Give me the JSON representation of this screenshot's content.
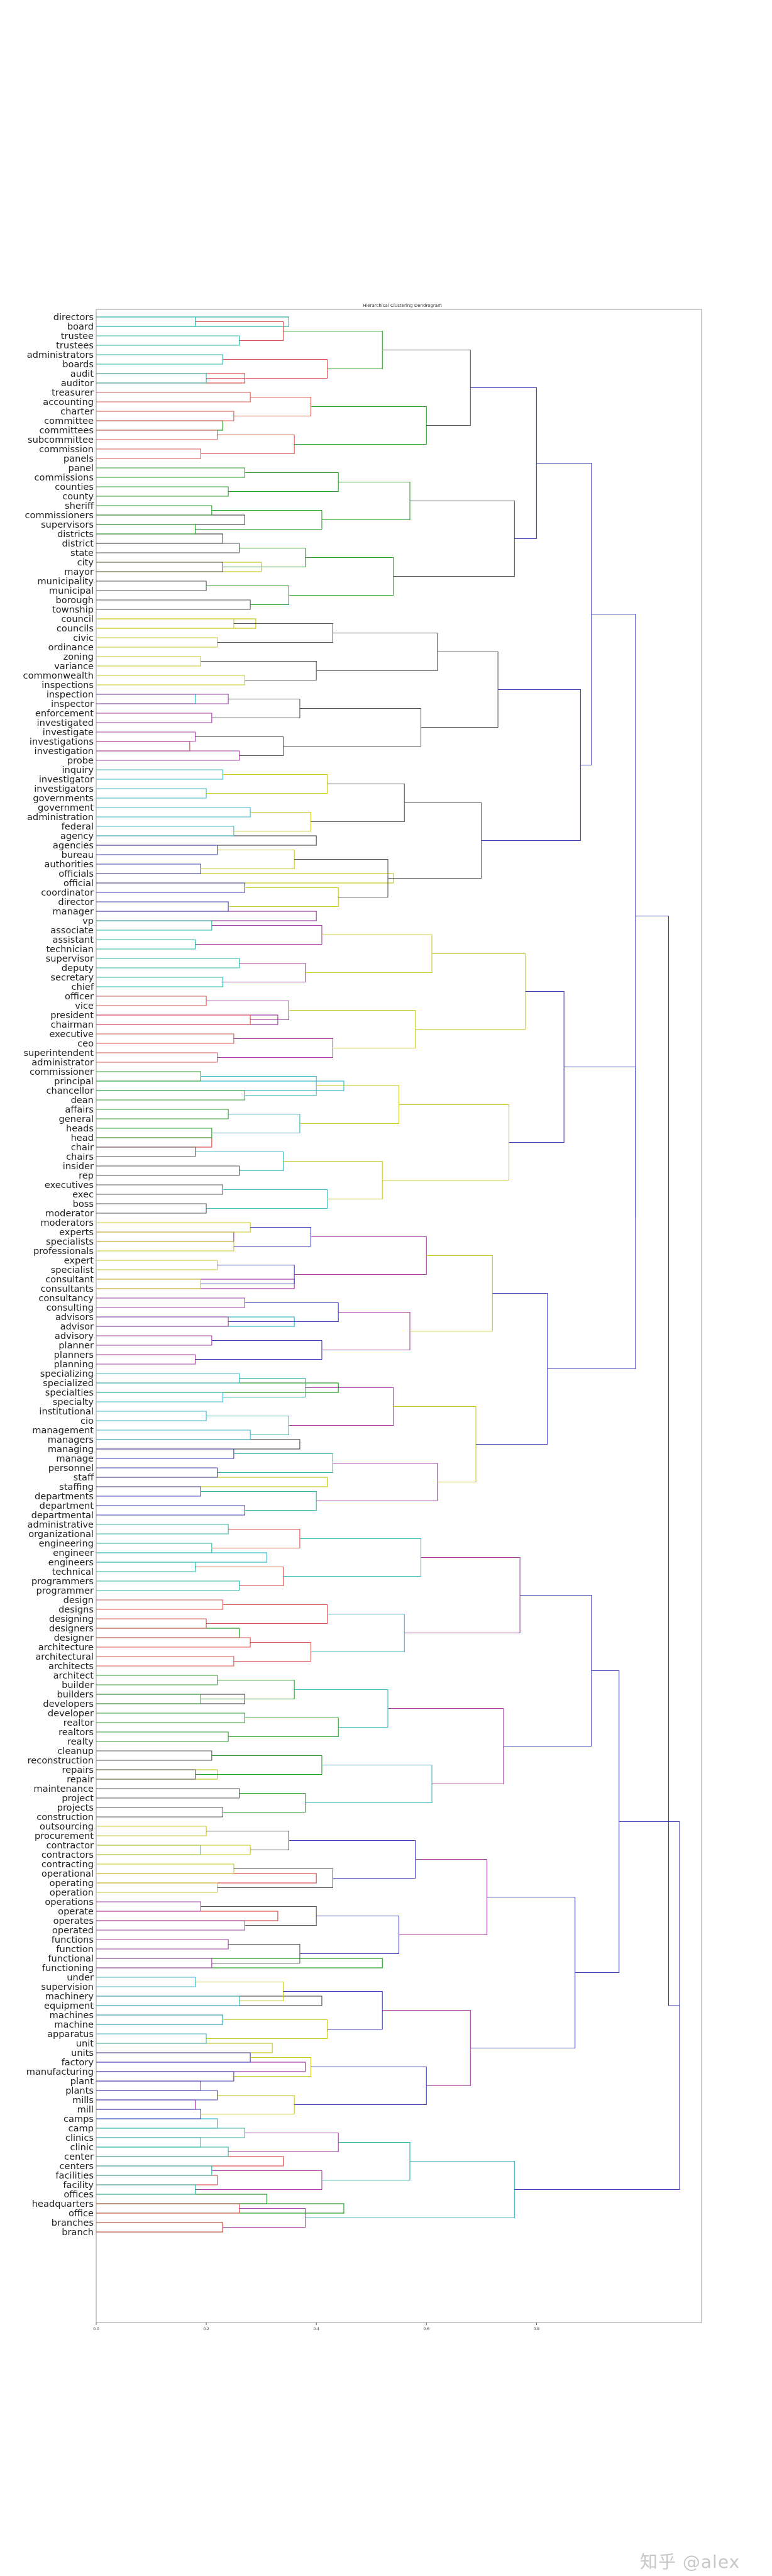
{
  "watermark": "知乎 @alex",
  "chart_data": {
    "type": "dendrogram",
    "title": "Hierarchical Clustering Dendrogram",
    "orientation": "left",
    "xlim": [
      0,
      1.1
    ],
    "xticks": [
      "0.0",
      "0.2",
      "0.4",
      "0.6",
      "0.8"
    ],
    "leaves": [
      "directors",
      "board",
      "trustee",
      "trustees",
      "administrators",
      "boards",
      "audit",
      "auditor",
      "treasurer",
      "accounting",
      "charter",
      "committee",
      "committees",
      "subcommittee",
      "commission",
      "panels",
      "panel",
      "commissions",
      "counties",
      "county",
      "sheriff",
      "commissioners",
      "supervisors",
      "districts",
      "district",
      "state",
      "city",
      "mayor",
      "municipality",
      "municipal",
      "borough",
      "township",
      "council",
      "councils",
      "civic",
      "ordinance",
      "zoning",
      "variance",
      "commonwealth",
      "inspections",
      "inspection",
      "inspector",
      "enforcement",
      "investigated",
      "investigate",
      "investigations",
      "investigation",
      "probe",
      "inquiry",
      "investigator",
      "investigators",
      "governments",
      "government",
      "administration",
      "federal",
      "agency",
      "agencies",
      "bureau",
      "authorities",
      "officials",
      "official",
      "coordinator",
      "director",
      "manager",
      "vp",
      "associate",
      "assistant",
      "technician",
      "supervisor",
      "deputy",
      "secretary",
      "chief",
      "officer",
      "vice",
      "president",
      "chairman",
      "executive",
      "ceo",
      "superintendent",
      "administrator",
      "commissioner",
      "principal",
      "chancellor",
      "dean",
      "affairs",
      "general",
      "heads",
      "head",
      "chair",
      "chairs",
      "insider",
      "rep",
      "executives",
      "exec",
      "boss",
      "moderator",
      "moderators",
      "experts",
      "specialists",
      "professionals",
      "expert",
      "specialist",
      "consultant",
      "consultants",
      "consultancy",
      "consulting",
      "advisors",
      "advisor",
      "advisory",
      "planner",
      "planners",
      "planning",
      "specializing",
      "specialized",
      "specialties",
      "specialty",
      "institutional",
      "cio",
      "management",
      "managers",
      "managing",
      "manage",
      "personnel",
      "staff",
      "staffing",
      "departments",
      "department",
      "departmental",
      "administrative",
      "organizational",
      "engineering",
      "engineer",
      "engineers",
      "technical",
      "programmers",
      "programmer",
      "design",
      "designs",
      "designing",
      "designers",
      "designer",
      "architecture",
      "architectural",
      "architects",
      "architect",
      "builder",
      "builders",
      "developers",
      "developer",
      "realtor",
      "realtors",
      "realty",
      "cleanup",
      "reconstruction",
      "repairs",
      "repair",
      "maintenance",
      "project",
      "projects",
      "construction",
      "outsourcing",
      "procurement",
      "contractor",
      "contractors",
      "contracting",
      "operational",
      "operating",
      "operation",
      "operations",
      "operate",
      "operates",
      "operated",
      "functions",
      "function",
      "functional",
      "functioning",
      "under",
      "supervision",
      "machinery",
      "equipment",
      "machines",
      "machine",
      "apparatus",
      "unit",
      "units",
      "factory",
      "manufacturing",
      "plant",
      "plants",
      "mills",
      "mill",
      "camps",
      "camp",
      "clinics",
      "clinic",
      "center",
      "centers",
      "facilities",
      "facility",
      "offices",
      "headquarters",
      "office",
      "branches",
      "branch"
    ],
    "cluster_colors": [
      "#2bb3a3",
      "#d9534f",
      "#2a9d2a",
      "#555555",
      "#c8c820",
      "#a23fa3",
      "#3fb6c6",
      "#3c3cb0"
    ],
    "merges": [
      {
        "a": "branches",
        "b": "branch",
        "height": 0.23,
        "color": "#2a9d2a"
      },
      {
        "a": "offices",
        "b": "headquarters",
        "height": 0.31,
        "color": "#2a9d2a"
      },
      {
        "a": "office",
        "b": "headquarters",
        "height": 0.45,
        "color": "#2a9d2a"
      },
      {
        "a": "facilities",
        "b": "facility",
        "height": 0.22,
        "color": "#d9534f"
      },
      {
        "a": "center",
        "b": "centers",
        "height": 0.34,
        "color": "#d9534f"
      },
      {
        "a": "clinics",
        "b": "clinic",
        "height": 0.19,
        "color": "#3fb6c6"
      },
      {
        "a": "camps",
        "b": "camp",
        "height": 0.22,
        "color": "#3fb6c6"
      },
      {
        "a": "mills",
        "b": "mill",
        "height": 0.18,
        "color": "#a23fa3"
      },
      {
        "a": "plant",
        "b": "plants",
        "height": 0.19,
        "color": "#a23fa3"
      },
      {
        "a": "factory",
        "b": "manufacturing",
        "height": 0.38,
        "color": "#a23fa3"
      },
      {
        "a": "unit",
        "b": "units",
        "height": 0.32,
        "color": "#c8c820"
      },
      {
        "a": "machines",
        "b": "machine",
        "height": 0.23,
        "color": "#555555"
      },
      {
        "a": "machinery",
        "b": "equipment",
        "height": 0.41,
        "color": "#555555"
      },
      {
        "a": "functional",
        "b": "functioning",
        "height": 0.52,
        "color": "#2a9d2a"
      },
      {
        "a": "operate",
        "b": "operates",
        "height": 0.33,
        "color": "#d9534f"
      },
      {
        "a": "operational",
        "b": "operating",
        "height": 0.4,
        "color": "#d9534f"
      },
      {
        "a": "contractor",
        "b": "contractors",
        "height": 0.19,
        "color": "#3fb6c6"
      },
      {
        "a": "repairs",
        "b": "repair",
        "height": 0.22,
        "color": "#c8c820"
      },
      {
        "a": "builders",
        "b": "developers",
        "height": 0.27,
        "color": "#555555"
      },
      {
        "a": "designers",
        "b": "designer",
        "height": 0.26,
        "color": "#2a9d2a"
      },
      {
        "a": "engineer",
        "b": "engineers",
        "height": 0.31,
        "color": "#3fb6c6"
      },
      {
        "a": "staff",
        "b": "staffing",
        "height": 0.42,
        "color": "#c8c820"
      },
      {
        "a": "managers",
        "b": "managing",
        "height": 0.37,
        "color": "#555555"
      },
      {
        "a": "specialized",
        "b": "specialties",
        "height": 0.44,
        "color": "#2a9d2a"
      },
      {
        "a": "advisors",
        "b": "advisor",
        "height": 0.36,
        "color": "#3fb6c6"
      },
      {
        "a": "consultant",
        "b": "consultants",
        "height": 0.36,
        "color": "#a23fa3"
      },
      {
        "a": "experts",
        "b": "specialists",
        "height": 0.25,
        "color": "#a23fa3"
      },
      {
        "a": "head",
        "b": "chair",
        "height": 0.21,
        "color": "#d9534f"
      },
      {
        "a": "principal",
        "b": "chancellor",
        "height": 0.45,
        "color": "#3fb6c6"
      },
      {
        "a": "president",
        "b": "chairman",
        "height": 0.33,
        "color": "#a23fa3"
      },
      {
        "a": "manager",
        "b": "vp",
        "height": 0.4,
        "color": "#a23fa3"
      },
      {
        "a": "officials",
        "b": "official",
        "height": 0.54,
        "color": "#c8c820"
      },
      {
        "a": "agency",
        "b": "agencies",
        "height": 0.4,
        "color": "#555555"
      },
      {
        "a": "investigations",
        "b": "investigation",
        "height": 0.17,
        "color": "#d9534f"
      },
      {
        "a": "inspection",
        "b": "inspector",
        "height": 0.18,
        "color": "#3fb6c6"
      },
      {
        "a": "council",
        "b": "councils",
        "height": 0.29,
        "color": "#c8c820"
      },
      {
        "a": "city",
        "b": "mayor",
        "height": 0.3,
        "color": "#c8c820"
      },
      {
        "a": "districts",
        "b": "district",
        "height": 0.23,
        "color": "#555555"
      },
      {
        "a": "commissioners",
        "b": "supervisors",
        "height": 0.27,
        "color": "#555555"
      },
      {
        "a": "committee",
        "b": "committees",
        "height": 0.23,
        "color": "#2a9d2a"
      },
      {
        "a": "audit",
        "b": "auditor",
        "height": 0.27,
        "color": "#d9534f"
      },
      {
        "a": "directors",
        "b": "board",
        "height": 0.35,
        "color": "#2bb3a3"
      }
    ]
  }
}
